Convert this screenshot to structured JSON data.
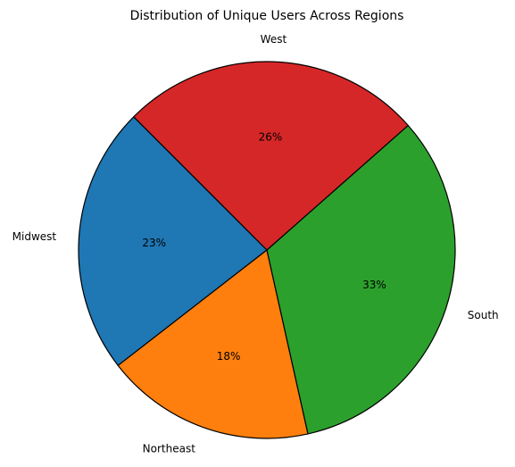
{
  "chart_data": {
    "type": "pie",
    "title": "Distribution of Unique Users Across Regions",
    "categories": [
      "Midwest",
      "Northeast",
      "South",
      "West"
    ],
    "values": [
      23,
      18,
      33,
      26
    ],
    "value_labels": [
      "23%",
      "18%",
      "33%",
      "26%"
    ],
    "colors": [
      "#1f77b4",
      "#ff7f0e",
      "#2ca02c",
      "#d62728"
    ],
    "start_angle_deg": 135,
    "direction": "counterclockwise",
    "edgecolor": "#000000"
  }
}
